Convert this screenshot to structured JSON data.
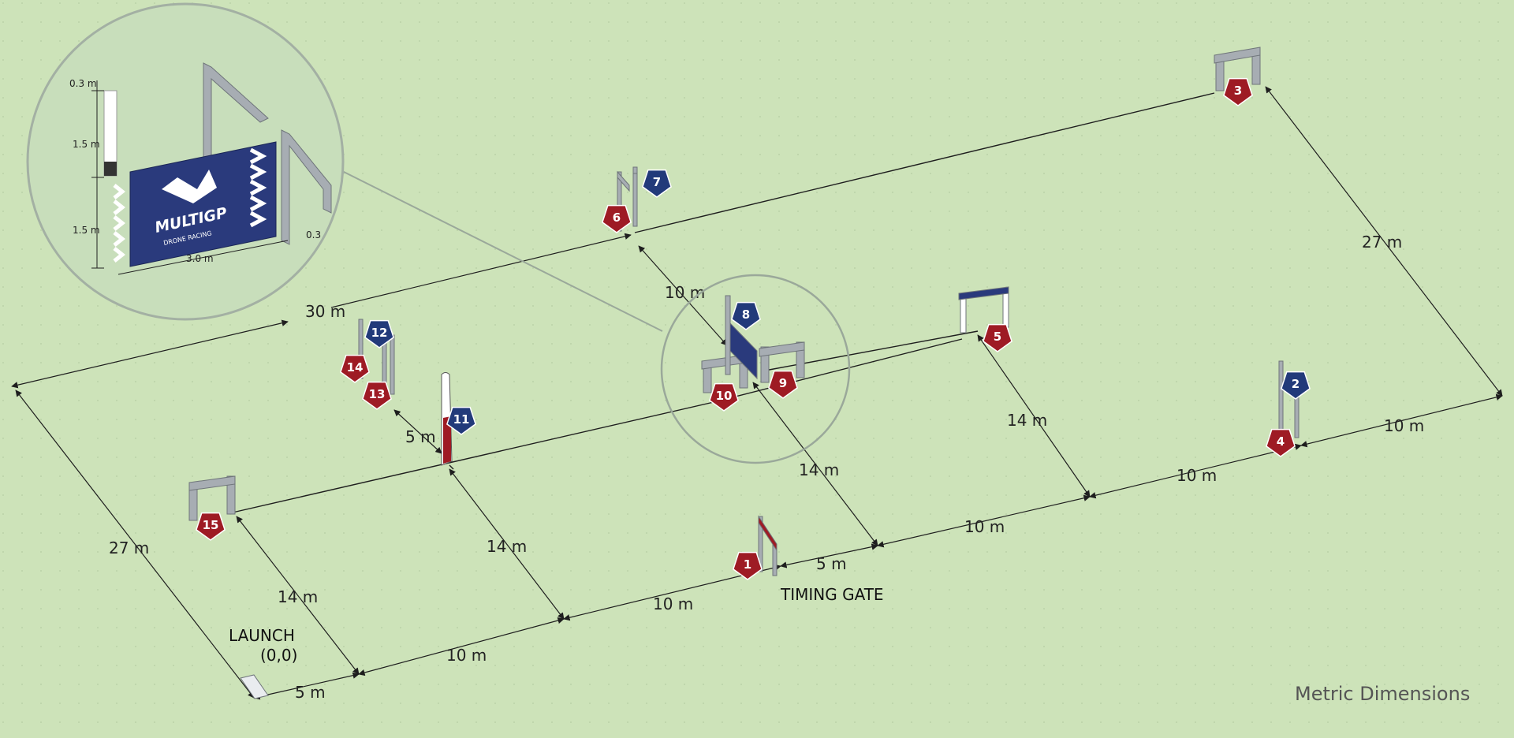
{
  "colors": {
    "ground": "#cde3b9",
    "red_badge": "#9e1b24",
    "blue_badge": "#223a7a",
    "line": "#1e1e1e",
    "gate": "#9aa0a6",
    "banner": "#2a3a7c"
  },
  "labels": {
    "launch": "LAUNCH",
    "origin": "(0,0)",
    "timing_gate": "TIMING GATE",
    "metric": "Metric Dimensions"
  },
  "dimensions": {
    "left_side": "27 m",
    "right_side": "27 m",
    "back_line": "30 m",
    "gate6_to_8": "10 m",
    "gate13_to_11": "5 m",
    "gate15_to_front": "14 m",
    "gate11_to_front": "14 m",
    "gate9_to_front": "14 m",
    "gate5_to_front": "14 m",
    "front_a": "5 m",
    "front_b": "10 m",
    "front_c": "10 m",
    "front_d": "5 m",
    "front_e": "10 m",
    "front_f": "10 m",
    "front_g": "10 m"
  },
  "detail": {
    "top_dim": "0.3 m",
    "upper_dim": "1.5 m",
    "lower_dim": "1.5 m",
    "width_dim": "3.0 m",
    "side_dim": "0.3",
    "brand": "MULTIGP",
    "brand_sub": "DRONE RACING"
  },
  "gates": [
    {
      "num": "1",
      "color": "red"
    },
    {
      "num": "2",
      "color": "blue"
    },
    {
      "num": "3",
      "color": "red"
    },
    {
      "num": "4",
      "color": "red"
    },
    {
      "num": "5",
      "color": "red"
    },
    {
      "num": "6",
      "color": "red"
    },
    {
      "num": "7",
      "color": "blue"
    },
    {
      "num": "8",
      "color": "blue"
    },
    {
      "num": "9",
      "color": "red"
    },
    {
      "num": "10",
      "color": "red"
    },
    {
      "num": "11",
      "color": "blue"
    },
    {
      "num": "12",
      "color": "blue"
    },
    {
      "num": "13",
      "color": "red"
    },
    {
      "num": "14",
      "color": "red"
    },
    {
      "num": "15",
      "color": "red"
    }
  ]
}
